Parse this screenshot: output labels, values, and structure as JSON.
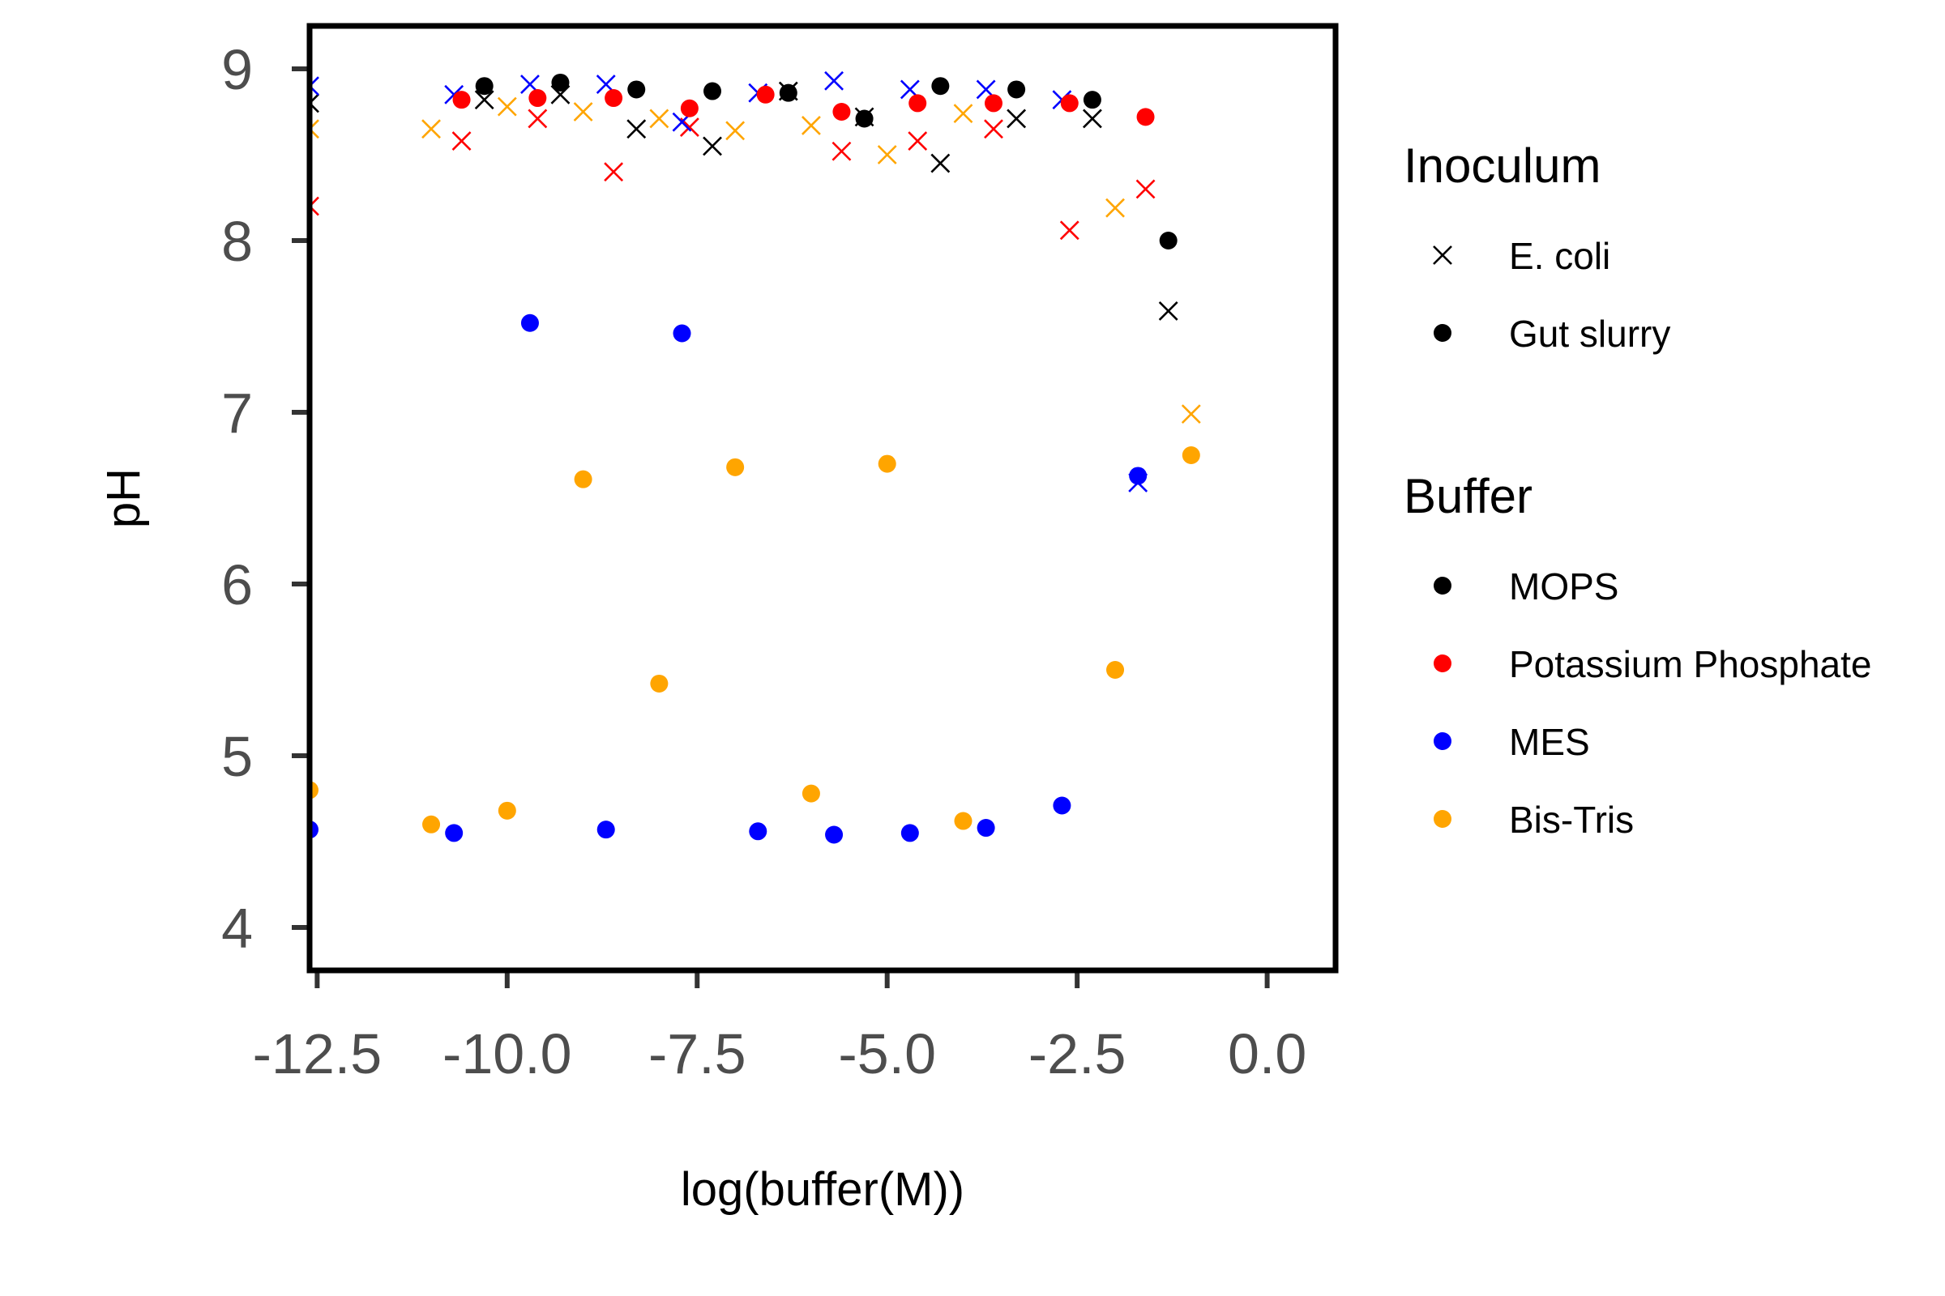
{
  "chart_data": {
    "type": "scatter",
    "xlabel": "log(buffer(M))",
    "ylabel": "pH",
    "xlim": [
      -12.6,
      0.9
    ],
    "ylim": [
      3.75,
      9.25
    ],
    "x_ticks": [
      -12.5,
      -10.0,
      -7.5,
      -5.0,
      -2.5,
      0.0
    ],
    "x_tick_labels": [
      "-12.5",
      "-10.0",
      "-7.5",
      "-5.0",
      "-2.5",
      "0.0"
    ],
    "y_ticks": [
      4,
      5,
      6,
      7,
      8,
      9
    ],
    "y_tick_labels": [
      "4",
      "5",
      "6",
      "7",
      "8",
      "9"
    ],
    "grid": false,
    "legend_position": "right",
    "legends": [
      {
        "title": "Inoculum",
        "items": [
          {
            "label": "E. coli",
            "shape": "cross",
            "color": "#000000"
          },
          {
            "label": "Gut slurry",
            "shape": "circle",
            "color": "#000000"
          }
        ]
      },
      {
        "title": "Buffer",
        "items": [
          {
            "label": "MOPS",
            "shape": "circle",
            "color": "#000000"
          },
          {
            "label": "Potassium Phosphate",
            "shape": "circle",
            "color": "#ff0000"
          },
          {
            "label": "MES",
            "shape": "circle",
            "color": "#0000ff"
          },
          {
            "label": "Bis-Tris",
            "shape": "circle",
            "color": "#ffa500"
          }
        ]
      }
    ],
    "series": [
      {
        "inoculum": "E. coli",
        "buffer": "MOPS",
        "color": "#000000",
        "shape": "cross",
        "points": [
          [
            -12.6,
            8.8
          ],
          [
            -10.3,
            8.82
          ],
          [
            -9.3,
            8.85
          ],
          [
            -8.3,
            8.65
          ],
          [
            -7.3,
            8.55
          ],
          [
            -6.3,
            8.87
          ],
          [
            -5.3,
            8.72
          ],
          [
            -4.3,
            8.45
          ],
          [
            -3.3,
            8.71
          ],
          [
            -2.3,
            8.71
          ],
          [
            -1.3,
            7.59
          ]
        ]
      },
      {
        "inoculum": "E. coli",
        "buffer": "Potassium Phosphate",
        "color": "#ff0000",
        "shape": "cross",
        "points": [
          [
            -12.6,
            8.2
          ],
          [
            -10.6,
            8.58
          ],
          [
            -9.6,
            8.71
          ],
          [
            -8.6,
            8.4
          ],
          [
            -7.6,
            8.66
          ],
          [
            -5.6,
            8.52
          ],
          [
            -4.6,
            8.58
          ],
          [
            -3.6,
            8.65
          ],
          [
            -2.6,
            8.06
          ],
          [
            -1.6,
            8.3
          ]
        ]
      },
      {
        "inoculum": "E. coli",
        "buffer": "MES",
        "color": "#0000ff",
        "shape": "cross",
        "points": [
          [
            -12.6,
            8.9
          ],
          [
            -10.7,
            8.85
          ],
          [
            -9.7,
            8.91
          ],
          [
            -8.7,
            8.91
          ],
          [
            -7.7,
            8.69
          ],
          [
            -6.7,
            8.86
          ],
          [
            -5.7,
            8.93
          ],
          [
            -4.7,
            8.88
          ],
          [
            -3.7,
            8.88
          ],
          [
            -2.7,
            8.82
          ],
          [
            -1.7,
            6.59
          ]
        ]
      },
      {
        "inoculum": "E. coli",
        "buffer": "Bis-Tris",
        "color": "#ffa500",
        "shape": "cross",
        "points": [
          [
            -12.6,
            8.65
          ],
          [
            -11.0,
            8.65
          ],
          [
            -10.0,
            8.78
          ],
          [
            -9.0,
            8.75
          ],
          [
            -8.0,
            8.71
          ],
          [
            -7.0,
            8.64
          ],
          [
            -6.0,
            8.67
          ],
          [
            -5.0,
            8.5
          ],
          [
            -4.0,
            8.74
          ],
          [
            -2.0,
            8.19
          ],
          [
            -1.0,
            6.99
          ]
        ]
      },
      {
        "inoculum": "Gut slurry",
        "buffer": "MOPS",
        "color": "#000000",
        "shape": "circle",
        "points": [
          [
            -10.3,
            8.9
          ],
          [
            -9.3,
            8.92
          ],
          [
            -8.3,
            8.88
          ],
          [
            -7.3,
            8.87
          ],
          [
            -6.3,
            8.86
          ],
          [
            -5.3,
            8.71
          ],
          [
            -4.3,
            8.9
          ],
          [
            -3.3,
            8.88
          ],
          [
            -2.3,
            8.82
          ],
          [
            -1.3,
            8.0
          ]
        ]
      },
      {
        "inoculum": "Gut slurry",
        "buffer": "Potassium Phosphate",
        "color": "#ff0000",
        "shape": "circle",
        "points": [
          [
            -10.6,
            8.82
          ],
          [
            -9.6,
            8.83
          ],
          [
            -8.6,
            8.83
          ],
          [
            -7.6,
            8.77
          ],
          [
            -6.6,
            8.85
          ],
          [
            -5.6,
            8.75
          ],
          [
            -4.6,
            8.8
          ],
          [
            -3.6,
            8.8
          ],
          [
            -2.6,
            8.8
          ],
          [
            -1.6,
            8.72
          ]
        ]
      },
      {
        "inoculum": "Gut slurry",
        "buffer": "MES",
        "color": "#0000ff",
        "shape": "circle",
        "points": [
          [
            -12.6,
            4.57
          ],
          [
            -10.7,
            4.55
          ],
          [
            -9.7,
            7.52
          ],
          [
            -8.7,
            4.57
          ],
          [
            -7.7,
            7.46
          ],
          [
            -6.7,
            4.56
          ],
          [
            -5.7,
            4.54
          ],
          [
            -4.7,
            4.55
          ],
          [
            -3.7,
            4.58
          ],
          [
            -2.7,
            4.71
          ],
          [
            -1.7,
            6.63
          ]
        ]
      },
      {
        "inoculum": "Gut slurry",
        "buffer": "Bis-Tris",
        "color": "#ffa500",
        "shape": "circle",
        "points": [
          [
            -12.6,
            4.8
          ],
          [
            -11.0,
            4.6
          ],
          [
            -10.0,
            4.68
          ],
          [
            -9.0,
            6.61
          ],
          [
            -8.0,
            5.42
          ],
          [
            -7.0,
            6.68
          ],
          [
            -6.0,
            4.78
          ],
          [
            -5.0,
            6.7
          ],
          [
            -4.0,
            4.62
          ],
          [
            -2.0,
            5.5
          ],
          [
            -1.0,
            6.75
          ]
        ]
      }
    ]
  }
}
